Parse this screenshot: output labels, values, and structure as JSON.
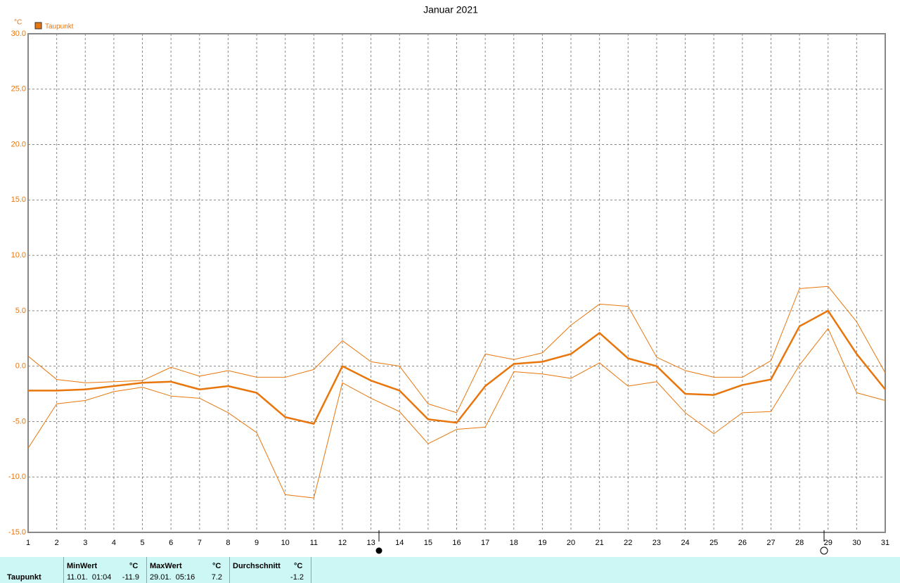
{
  "chart_data": {
    "type": "line",
    "title": "Januar 2021",
    "y_unit": "°C",
    "x": [
      1,
      2,
      3,
      4,
      5,
      6,
      7,
      8,
      9,
      10,
      11,
      12,
      13,
      14,
      15,
      16,
      17,
      18,
      19,
      20,
      21,
      22,
      23,
      24,
      25,
      26,
      27,
      28,
      29,
      30,
      31
    ],
    "xlim": [
      1,
      31
    ],
    "ylim": [
      -15,
      30
    ],
    "yticks": [
      {
        "value": 30,
        "label": "30.0"
      },
      {
        "value": 25,
        "label": "25.0"
      },
      {
        "value": 20,
        "label": "20.0"
      },
      {
        "value": 15,
        "label": "15.0"
      },
      {
        "value": 10,
        "label": "10.0"
      },
      {
        "value": 5,
        "label": "5.0"
      },
      {
        "value": 0,
        "label": "0.0"
      },
      {
        "value": -5,
        "label": "-5.0"
      },
      {
        "value": -10,
        "label": "-10.0"
      },
      {
        "value": -15,
        "label": "-15.0"
      }
    ],
    "grid": true,
    "series": [
      {
        "name": "Taupunkt",
        "color": "#e8760c",
        "values": [
          -2.2,
          -2.2,
          -2.1,
          -1.8,
          -1.5,
          -1.4,
          -2.1,
          -1.8,
          -2.4,
          -4.6,
          -5.2,
          0.0,
          -1.3,
          -2.2,
          -4.8,
          -5.1,
          -1.8,
          0.2,
          0.4,
          1.1,
          3.0,
          0.7,
          0.0,
          -2.5,
          -2.6,
          -1.7,
          -1.2,
          3.6,
          5.0,
          1.1,
          -2.1
        ],
        "max_values": [
          0.9,
          -1.2,
          -1.5,
          -1.4,
          -1.3,
          -0.1,
          -0.9,
          -0.4,
          -1.0,
          -1.0,
          -0.3,
          2.3,
          0.4,
          0.0,
          -3.4,
          -4.2,
          1.1,
          0.6,
          1.2,
          3.7,
          5.6,
          5.4,
          0.8,
          -0.4,
          -1.0,
          -1.0,
          0.5,
          7.0,
          7.2,
          4.0,
          -0.6
        ],
        "min_values": [
          -7.4,
          -3.4,
          -3.1,
          -2.3,
          -1.9,
          -2.7,
          -2.9,
          -4.2,
          -6.0,
          -11.6,
          -11.9,
          -1.5,
          -2.9,
          -4.1,
          -7.0,
          -5.7,
          -5.5,
          -0.5,
          -0.7,
          -1.1,
          0.3,
          -1.8,
          -1.4,
          -4.2,
          -6.1,
          -4.2,
          -4.1,
          0.1,
          3.4,
          -2.4,
          -3.1
        ]
      }
    ]
  },
  "stats": {
    "row_label": "Taupunkt",
    "columns": [
      {
        "header": "MinWert",
        "unit": "°C",
        "time": "11.01.  01:04",
        "value": -11.9
      },
      {
        "header": "MaxWert",
        "unit": "°C",
        "time": "29.01.  05:16",
        "value": 7.2
      },
      {
        "header": "Durchschnitt",
        "unit": "°C",
        "value": -1.2
      }
    ]
  }
}
